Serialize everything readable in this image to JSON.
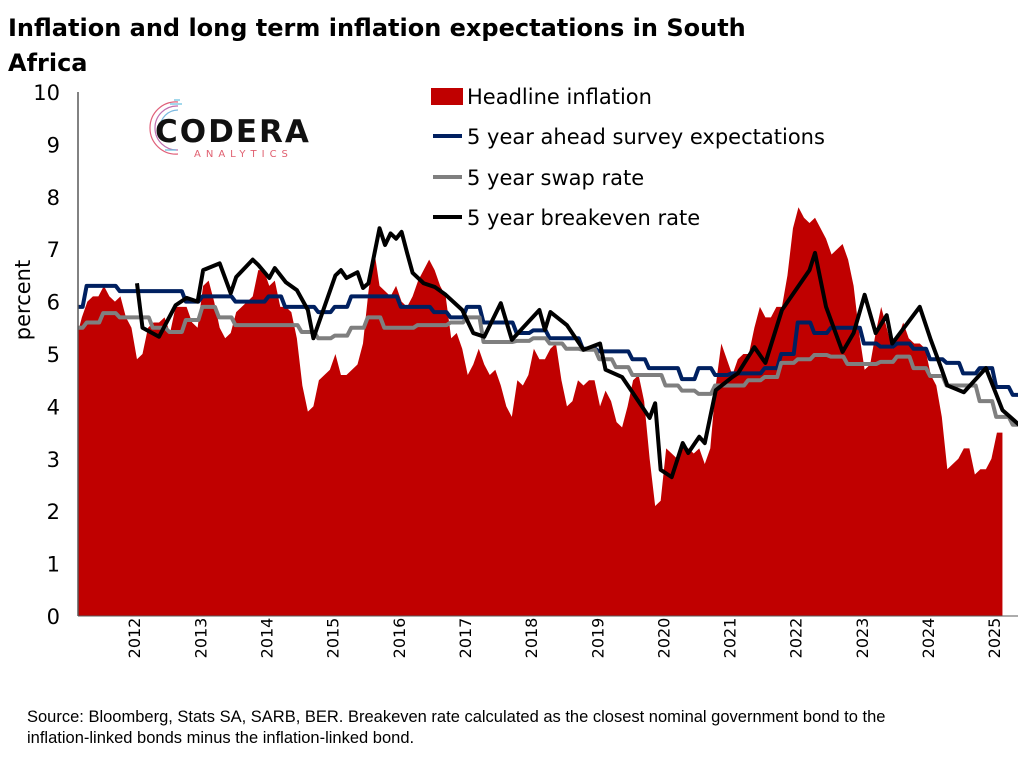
{
  "chart_data": {
    "type": "area+line",
    "title": "Inflation and long term inflation expectations in South Africa",
    "ylabel": "percent",
    "xlabel": "",
    "ylim": [
      0,
      10
    ],
    "yticks": [
      "0",
      "1",
      "2",
      "3",
      "4",
      "5",
      "6",
      "7",
      "8",
      "9",
      "10"
    ],
    "xticks": [
      "2012",
      "2013",
      "2014",
      "2015",
      "2016",
      "2017",
      "2018",
      "2019",
      "2020",
      "2021",
      "2022",
      "2023",
      "2024",
      "2025"
    ],
    "grid": false,
    "legend_position": "top-center",
    "series": [
      {
        "name": "Headline inflation",
        "kind": "area",
        "color": "#c00000",
        "frequency": "monthly",
        "start": "2011-08",
        "values": [
          5.3,
          5.7,
          6.0,
          6.1,
          6.1,
          6.3,
          6.1,
          6.0,
          6.1,
          5.7,
          5.5,
          4.9,
          5.0,
          5.5,
          5.6,
          5.6,
          5.7,
          5.4,
          5.9,
          5.9,
          5.9,
          5.6,
          5.5,
          6.3,
          6.4,
          6.0,
          5.5,
          5.3,
          5.4,
          5.8,
          5.9,
          6.0,
          6.1,
          6.6,
          6.6,
          6.3,
          6.4,
          5.9,
          5.9,
          5.8,
          5.3,
          4.4,
          3.9,
          4.0,
          4.5,
          4.6,
          4.7,
          5.0,
          4.6,
          4.6,
          4.7,
          4.8,
          5.2,
          6.2,
          7.0,
          6.3,
          6.2,
          6.1,
          6.3,
          6.0,
          5.9,
          6.1,
          6.4,
          6.6,
          6.8,
          6.6,
          6.3,
          6.1,
          5.3,
          5.4,
          5.1,
          4.6,
          4.8,
          5.1,
          4.8,
          4.6,
          4.7,
          4.4,
          4.0,
          3.8,
          4.5,
          4.4,
          4.6,
          5.1,
          4.9,
          4.9,
          5.1,
          5.2,
          4.5,
          4.0,
          4.1,
          4.5,
          4.4,
          4.5,
          4.5,
          4.0,
          4.3,
          4.1,
          3.7,
          3.6,
          4.0,
          4.5,
          4.6,
          4.1,
          3.0,
          2.1,
          2.2,
          3.2,
          3.1,
          3.0,
          3.3,
          3.2,
          3.1,
          3.2,
          2.9,
          3.2,
          4.4,
          5.2,
          4.9,
          4.6,
          4.9,
          5.0,
          5.0,
          5.5,
          5.9,
          5.7,
          5.7,
          5.9,
          5.9,
          6.5,
          7.4,
          7.8,
          7.6,
          7.5,
          7.6,
          7.4,
          7.2,
          6.9,
          7.0,
          7.1,
          6.8,
          6.3,
          5.4,
          4.7,
          4.8,
          5.4,
          5.9,
          5.5,
          5.1,
          5.3,
          5.6,
          5.3,
          5.2,
          5.2,
          5.1,
          4.6,
          4.4,
          3.8,
          2.8,
          2.9,
          3.0,
          3.2,
          3.2,
          2.7,
          2.8,
          2.8,
          3.0,
          3.5,
          3.5
        ]
      },
      {
        "name": "5 year ahead survey expectations",
        "kind": "step",
        "color": "#002060",
        "frequency": "quarterly",
        "start": "2011-Q3",
        "values": [
          5.9,
          6.3,
          6.3,
          6.2,
          6.2,
          6.2,
          6.2,
          6.0,
          6.1,
          6.1,
          6.0,
          6.0,
          6.1,
          5.9,
          5.9,
          5.8,
          5.9,
          6.1,
          6.1,
          6.1,
          5.9,
          5.9,
          5.8,
          5.7,
          5.9,
          5.6,
          5.6,
          5.4,
          5.45,
          5.3,
          5.3,
          5.1,
          5.05,
          5.05,
          4.9,
          4.73,
          4.73,
          4.52,
          4.73,
          4.6,
          4.63,
          4.63,
          4.73,
          5.0,
          5.6,
          5.4,
          5.5,
          5.5,
          5.2,
          5.14,
          5.2,
          5.1,
          4.9,
          4.83,
          4.63,
          4.73,
          4.37,
          4.22
        ]
      },
      {
        "name": "5 year swap rate",
        "kind": "step",
        "color": "#7f7f7f",
        "frequency": "quarterly",
        "start": "2011-Q3",
        "values": [
          5.5,
          5.6,
          5.78,
          5.7,
          5.7,
          5.5,
          5.42,
          5.65,
          5.9,
          5.7,
          5.55,
          5.55,
          5.55,
          5.55,
          5.42,
          5.3,
          5.35,
          5.5,
          5.7,
          5.5,
          5.5,
          5.55,
          5.55,
          5.6,
          5.7,
          5.23,
          5.23,
          5.25,
          5.3,
          5.2,
          5.1,
          5.08,
          4.9,
          4.75,
          4.6,
          4.6,
          4.4,
          4.3,
          4.24,
          4.4,
          4.4,
          4.5,
          4.56,
          4.83,
          4.9,
          4.98,
          4.95,
          4.81,
          4.81,
          4.85,
          4.95,
          4.73,
          4.58,
          4.4,
          4.4,
          4.1,
          3.8,
          3.65
        ]
      },
      {
        "name": "5 year breakeven rate",
        "kind": "line",
        "color": "#000000",
        "points": [
          [
            "2012-07",
            6.35
          ],
          [
            "2012-08",
            5.5
          ],
          [
            "2012-11",
            5.33
          ],
          [
            "2013-02",
            5.93
          ],
          [
            "2013-04",
            6.07
          ],
          [
            "2013-06",
            6.0
          ],
          [
            "2013-07",
            6.6
          ],
          [
            "2013-10",
            6.73
          ],
          [
            "2013-12",
            6.16
          ],
          [
            "2014-01",
            6.47
          ],
          [
            "2014-04",
            6.8
          ],
          [
            "2014-05",
            6.7
          ],
          [
            "2014-07",
            6.45
          ],
          [
            "2014-08",
            6.64
          ],
          [
            "2014-10",
            6.37
          ],
          [
            "2014-12",
            6.22
          ],
          [
            "2015-02",
            5.84
          ],
          [
            "2015-03",
            5.3
          ],
          [
            "2015-07",
            6.5
          ],
          [
            "2015-08",
            6.6
          ],
          [
            "2015-09",
            6.45
          ],
          [
            "2015-11",
            6.56
          ],
          [
            "2015-12",
            6.26
          ],
          [
            "2016-01",
            6.35
          ],
          [
            "2016-03",
            7.4
          ],
          [
            "2016-04",
            7.08
          ],
          [
            "2016-05",
            7.3
          ],
          [
            "2016-06",
            7.2
          ],
          [
            "2016-07",
            7.33
          ],
          [
            "2016-08",
            6.93
          ],
          [
            "2016-09",
            6.55
          ],
          [
            "2016-11",
            6.35
          ],
          [
            "2017-01",
            6.28
          ],
          [
            "2017-03",
            6.13
          ],
          [
            "2017-06",
            5.84
          ],
          [
            "2017-08",
            5.4
          ],
          [
            "2017-10",
            5.33
          ],
          [
            "2018-01",
            5.97
          ],
          [
            "2018-03",
            5.27
          ],
          [
            "2018-05",
            5.5
          ],
          [
            "2018-08",
            5.84
          ],
          [
            "2018-09",
            5.46
          ],
          [
            "2018-10",
            5.8
          ],
          [
            "2019-01",
            5.55
          ],
          [
            "2019-04",
            5.08
          ],
          [
            "2019-07",
            5.2
          ],
          [
            "2019-08",
            4.7
          ],
          [
            "2019-11",
            4.56
          ],
          [
            "2020-01",
            4.25
          ],
          [
            "2020-04",
            3.78
          ],
          [
            "2020-05",
            4.06
          ],
          [
            "2020-06",
            2.79
          ],
          [
            "2020-08",
            2.65
          ],
          [
            "2020-10",
            3.3
          ],
          [
            "2020-11",
            3.11
          ],
          [
            "2021-01",
            3.42
          ],
          [
            "2021-02",
            3.3
          ],
          [
            "2021-04",
            4.31
          ],
          [
            "2021-07",
            4.56
          ],
          [
            "2021-08",
            4.63
          ],
          [
            "2021-11",
            5.13
          ],
          [
            "2022-01",
            4.83
          ],
          [
            "2022-04",
            5.84
          ],
          [
            "2022-09",
            6.6
          ],
          [
            "2022-10",
            6.93
          ],
          [
            "2022-12",
            5.9
          ],
          [
            "2023-03",
            5.04
          ],
          [
            "2023-05",
            5.4
          ],
          [
            "2023-07",
            6.13
          ],
          [
            "2023-09",
            5.4
          ],
          [
            "2023-11",
            5.74
          ],
          [
            "2023-12",
            5.2
          ],
          [
            "2024-05",
            5.9
          ],
          [
            "2024-07",
            5.27
          ],
          [
            "2024-09",
            4.7
          ],
          [
            "2024-10",
            4.4
          ],
          [
            "2025-01",
            4.27
          ],
          [
            "2025-05",
            4.73
          ],
          [
            "2025-08",
            3.93
          ],
          [
            "2025-11",
            3.65
          ]
        ]
      }
    ],
    "source": "Source: Bloomberg, Stats SA, SARB, BER. Breakeven rate calculated as the closest nominal government bond to the inflation-linked bonds minus the inflation-linked bond."
  },
  "header": {
    "title_line1": "Inflation and long term inflation expectations in South",
    "title_line2": "Africa"
  },
  "logo": {
    "name": "CODERA",
    "sub": "ANALYTICS"
  },
  "footer": {
    "source_line1": "Source: Bloomberg, Stats SA, SARB, BER. Breakeven rate calculated as the closest nominal government bond to the",
    "source_line2": "inflation-linked bonds minus the inflation-linked bond."
  }
}
